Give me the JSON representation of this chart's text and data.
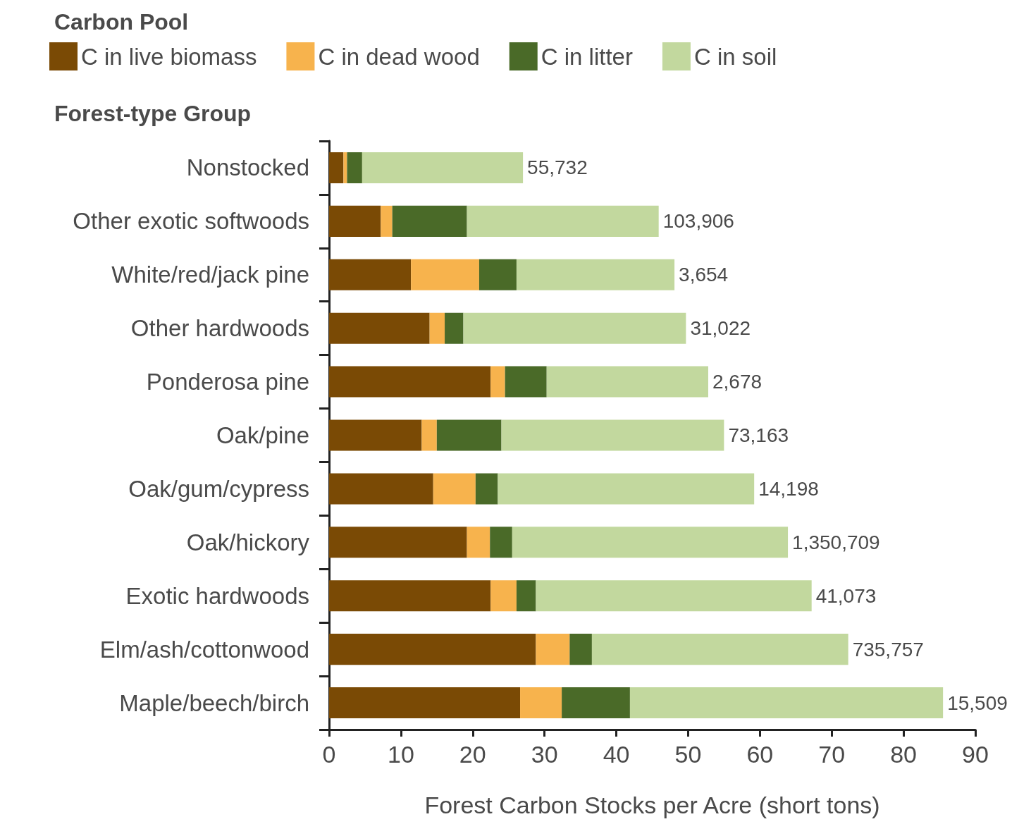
{
  "chart_data": {
    "type": "bar",
    "orientation": "horizontal",
    "stacked": true,
    "ylabel": "Forest-type Group",
    "xlabel": "Forest Carbon Stocks per Acre (short tons)",
    "legend_title": "Carbon Pool",
    "legend": "top",
    "grid": false,
    "categories": [
      "Nonstocked",
      "Other exotic softwoods",
      "White/red/jack pine",
      "Other hardwoods",
      "Ponderosa pine",
      "Oak/pine",
      "Oak/gum/cypress",
      "Oak/hickory",
      "Exotic hardwoods",
      "Elm/ash/cottonwood",
      "Maple/beech/birch"
    ],
    "series": [
      {
        "name": "C in live biomass",
        "color": "#7a4a05",
        "values": [
          2.0,
          7.2,
          11.4,
          14.0,
          22.5,
          12.9,
          14.5,
          19.2,
          22.5,
          28.8,
          26.6
        ]
      },
      {
        "name": "C in dead wood",
        "color": "#f7b34d",
        "values": [
          0.5,
          1.6,
          9.5,
          2.1,
          2.0,
          2.1,
          5.9,
          3.2,
          3.6,
          4.7,
          5.8
        ]
      },
      {
        "name": "C in litter",
        "color": "#4a6a28",
        "values": [
          2.1,
          10.4,
          5.2,
          2.6,
          5.8,
          9.0,
          3.1,
          3.1,
          2.7,
          3.1,
          9.5
        ]
      },
      {
        "name": "C in soil",
        "color": "#c2d89e",
        "values": [
          22.4,
          26.7,
          22.0,
          31.0,
          22.5,
          31.0,
          35.7,
          38.4,
          38.4,
          35.7,
          43.6
        ]
      }
    ],
    "annotations": [
      {
        "text": "55,732",
        "x": 27.0,
        "y": "Nonstocked"
      },
      {
        "text": "103,906",
        "x": 45.9,
        "y": "Other exotic softwoods"
      },
      {
        "text": "3,654",
        "x": 48.1,
        "y": "White/red/jack pine"
      },
      {
        "text": "31,022",
        "x": 49.7,
        "y": "Other hardwoods"
      },
      {
        "text": "2,678",
        "x": 52.8,
        "y": "Ponderosa pine"
      },
      {
        "text": "73,163",
        "x": 55.0,
        "y": "Oak/pine"
      },
      {
        "text": "14,198",
        "x": 59.2,
        "y": "Oak/gum/cypress"
      },
      {
        "text": "1,350,709",
        "x": 63.9,
        "y": "Oak/hickory"
      },
      {
        "text": "41,073",
        "x": 67.2,
        "y": "Exotic hardwoods"
      },
      {
        "text": "735,757",
        "x": 72.3,
        "y": "Elm/ash/cottonwood"
      },
      {
        "text": "15,509",
        "x": 85.5,
        "y": "Maple/beech/birch"
      }
    ],
    "xlim": [
      0,
      90
    ],
    "xticks": [
      0,
      10,
      20,
      30,
      40,
      50,
      60,
      70,
      80,
      90
    ]
  }
}
